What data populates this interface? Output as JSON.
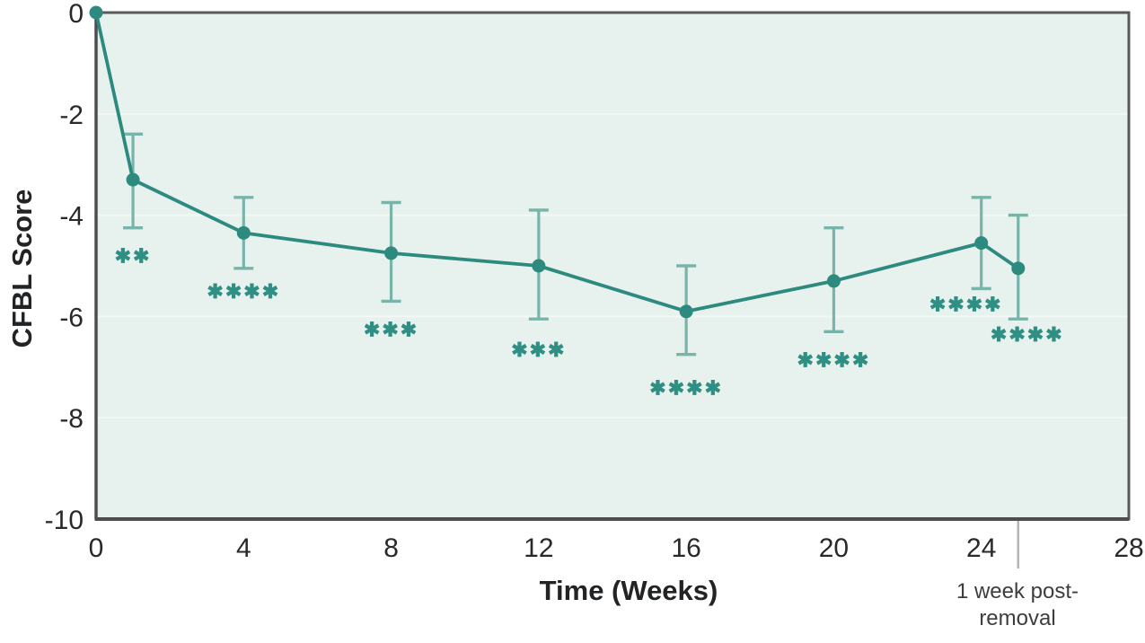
{
  "colors": {
    "line": "#2D8A7F",
    "marker": "#2D8A7F",
    "error_bar": "#78B4AA",
    "sig_marker": "#2F8F83",
    "plot_bg": "#E7F1ED",
    "frame": "#595A5C",
    "axis_dark": "#4C4D4F",
    "grid": "#F3F8F6",
    "tick_text": "#28292B",
    "divider": "#B2B4B6",
    "post_label_text": "#3C3D3F",
    "page_bg": "#FFFFFF"
  },
  "chart_data": {
    "type": "line",
    "title": "",
    "xlabel": "Time (Weeks)",
    "ylabel": "CFBL Score",
    "xlim": [
      0,
      28
    ],
    "ylim": [
      -10,
      0
    ],
    "x_ticks": [
      0,
      4,
      8,
      12,
      16,
      20,
      24,
      28
    ],
    "x_tick_labels": [
      "0",
      "4",
      "8",
      "12",
      "16",
      "20",
      "24",
      "28"
    ],
    "y_ticks": [
      0,
      -2,
      -4,
      -6,
      -8,
      -10
    ],
    "y_tick_labels": [
      "0",
      "-2",
      "-4",
      "-6",
      "-8",
      "-10"
    ],
    "grid": "horizontal gridlines at y ticks, plot area framed, light mint background",
    "legend": "none",
    "special_tick": {
      "x": 25,
      "line1": "1 week post-",
      "line2": "removal"
    },
    "series": [
      {
        "name": "Mean CFBL Score with error bars",
        "points": [
          {
            "x": 0,
            "y": 0,
            "hi": null,
            "lo": null,
            "sig": "",
            "sig_y": null,
            "sig_dx": 0
          },
          {
            "x": 1,
            "y": -3.3,
            "hi": -2.4,
            "lo": -4.25,
            "sig": "✱✱",
            "sig_y": -4.8,
            "sig_dx": 0
          },
          {
            "x": 4,
            "y": -4.35,
            "hi": -3.65,
            "lo": -5.05,
            "sig": "✱✱✱✱",
            "sig_y": -5.5,
            "sig_dx": 0
          },
          {
            "x": 8,
            "y": -4.75,
            "hi": -3.75,
            "lo": -5.7,
            "sig": "✱✱✱",
            "sig_y": -6.25,
            "sig_dx": 0
          },
          {
            "x": 12,
            "y": -5.0,
            "hi": -3.9,
            "lo": -6.05,
            "sig": "✱✱✱",
            "sig_y": -6.65,
            "sig_dx": 0
          },
          {
            "x": 16,
            "y": -5.9,
            "hi": -5.0,
            "lo": -6.75,
            "sig": "✱✱✱✱",
            "sig_y": -7.4,
            "sig_dx": 0
          },
          {
            "x": 20,
            "y": -5.3,
            "hi": -4.25,
            "lo": -6.3,
            "sig": "✱✱✱✱",
            "sig_y": -6.85,
            "sig_dx": 0
          },
          {
            "x": 24,
            "y": -4.55,
            "hi": -3.65,
            "lo": -5.45,
            "sig": "✱✱✱✱",
            "sig_y": -5.75,
            "sig_dx": -17
          },
          {
            "x": 25,
            "y": -5.05,
            "hi": -4.0,
            "lo": -6.05,
            "sig": "✱✱✱✱",
            "sig_y": -6.35,
            "sig_dx": 10
          }
        ]
      }
    ]
  }
}
